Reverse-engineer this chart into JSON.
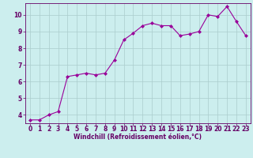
{
  "x": [
    0,
    1,
    2,
    3,
    4,
    5,
    6,
    7,
    8,
    9,
    10,
    11,
    12,
    13,
    14,
    15,
    16,
    17,
    18,
    19,
    20,
    21,
    22,
    23
  ],
  "y": [
    3.7,
    3.7,
    4.0,
    4.2,
    6.3,
    6.4,
    6.5,
    6.4,
    6.5,
    7.3,
    8.5,
    8.9,
    9.35,
    9.5,
    9.35,
    9.35,
    8.75,
    8.85,
    9.0,
    10.0,
    9.9,
    10.5,
    9.6,
    8.75
  ],
  "line_color": "#990099",
  "marker": "D",
  "marker_size": 2,
  "bg_color": "#cceeee",
  "grid_color": "#aacccc",
  "axis_color": "#660066",
  "xlabel": "Windchill (Refroidissement éolien,°C)",
  "ylim": [
    3.5,
    10.7
  ],
  "xlim": [
    -0.5,
    23.5
  ],
  "yticks": [
    4,
    5,
    6,
    7,
    8,
    9,
    10
  ],
  "xticks": [
    0,
    1,
    2,
    3,
    4,
    5,
    6,
    7,
    8,
    9,
    10,
    11,
    12,
    13,
    14,
    15,
    16,
    17,
    18,
    19,
    20,
    21,
    22,
    23
  ],
  "label_fontsize": 5.5,
  "tick_fontsize": 5.5
}
